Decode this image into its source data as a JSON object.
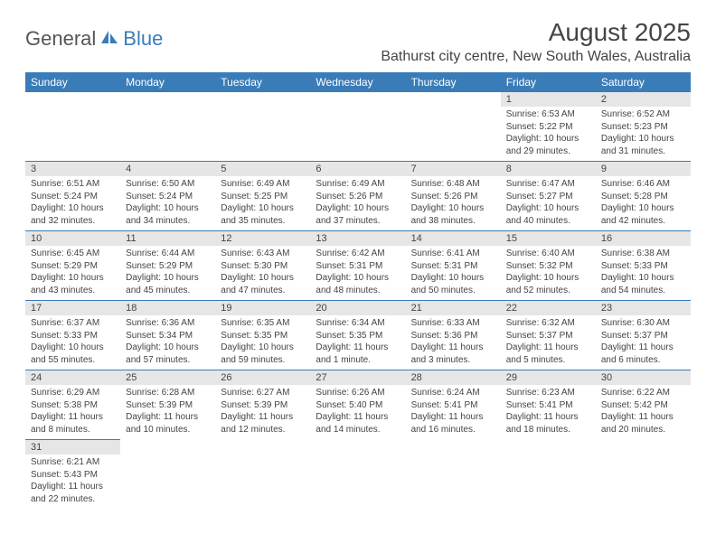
{
  "logo": {
    "text1": "General",
    "text2": "Blue"
  },
  "title": "August 2025",
  "location": "Bathurst city centre, New South Wales, Australia",
  "header_bg": "#3a7cb8",
  "daynum_bg": "#e6e6e6",
  "divider_color": "#3a7cb8",
  "text_color": "#444444",
  "days": [
    "Sunday",
    "Monday",
    "Tuesday",
    "Wednesday",
    "Thursday",
    "Friday",
    "Saturday"
  ],
  "weeks": [
    {
      "nums": [
        "",
        "",
        "",
        "",
        "",
        "1",
        "2"
      ],
      "details": [
        null,
        null,
        null,
        null,
        null,
        {
          "sunrise": "Sunrise: 6:53 AM",
          "sunset": "Sunset: 5:22 PM",
          "day1": "Daylight: 10 hours",
          "day2": "and 29 minutes."
        },
        {
          "sunrise": "Sunrise: 6:52 AM",
          "sunset": "Sunset: 5:23 PM",
          "day1": "Daylight: 10 hours",
          "day2": "and 31 minutes."
        }
      ]
    },
    {
      "nums": [
        "3",
        "4",
        "5",
        "6",
        "7",
        "8",
        "9"
      ],
      "details": [
        {
          "sunrise": "Sunrise: 6:51 AM",
          "sunset": "Sunset: 5:24 PM",
          "day1": "Daylight: 10 hours",
          "day2": "and 32 minutes."
        },
        {
          "sunrise": "Sunrise: 6:50 AM",
          "sunset": "Sunset: 5:24 PM",
          "day1": "Daylight: 10 hours",
          "day2": "and 34 minutes."
        },
        {
          "sunrise": "Sunrise: 6:49 AM",
          "sunset": "Sunset: 5:25 PM",
          "day1": "Daylight: 10 hours",
          "day2": "and 35 minutes."
        },
        {
          "sunrise": "Sunrise: 6:49 AM",
          "sunset": "Sunset: 5:26 PM",
          "day1": "Daylight: 10 hours",
          "day2": "and 37 minutes."
        },
        {
          "sunrise": "Sunrise: 6:48 AM",
          "sunset": "Sunset: 5:26 PM",
          "day1": "Daylight: 10 hours",
          "day2": "and 38 minutes."
        },
        {
          "sunrise": "Sunrise: 6:47 AM",
          "sunset": "Sunset: 5:27 PM",
          "day1": "Daylight: 10 hours",
          "day2": "and 40 minutes."
        },
        {
          "sunrise": "Sunrise: 6:46 AM",
          "sunset": "Sunset: 5:28 PM",
          "day1": "Daylight: 10 hours",
          "day2": "and 42 minutes."
        }
      ]
    },
    {
      "nums": [
        "10",
        "11",
        "12",
        "13",
        "14",
        "15",
        "16"
      ],
      "details": [
        {
          "sunrise": "Sunrise: 6:45 AM",
          "sunset": "Sunset: 5:29 PM",
          "day1": "Daylight: 10 hours",
          "day2": "and 43 minutes."
        },
        {
          "sunrise": "Sunrise: 6:44 AM",
          "sunset": "Sunset: 5:29 PM",
          "day1": "Daylight: 10 hours",
          "day2": "and 45 minutes."
        },
        {
          "sunrise": "Sunrise: 6:43 AM",
          "sunset": "Sunset: 5:30 PM",
          "day1": "Daylight: 10 hours",
          "day2": "and 47 minutes."
        },
        {
          "sunrise": "Sunrise: 6:42 AM",
          "sunset": "Sunset: 5:31 PM",
          "day1": "Daylight: 10 hours",
          "day2": "and 48 minutes."
        },
        {
          "sunrise": "Sunrise: 6:41 AM",
          "sunset": "Sunset: 5:31 PM",
          "day1": "Daylight: 10 hours",
          "day2": "and 50 minutes."
        },
        {
          "sunrise": "Sunrise: 6:40 AM",
          "sunset": "Sunset: 5:32 PM",
          "day1": "Daylight: 10 hours",
          "day2": "and 52 minutes."
        },
        {
          "sunrise": "Sunrise: 6:38 AM",
          "sunset": "Sunset: 5:33 PM",
          "day1": "Daylight: 10 hours",
          "day2": "and 54 minutes."
        }
      ]
    },
    {
      "nums": [
        "17",
        "18",
        "19",
        "20",
        "21",
        "22",
        "23"
      ],
      "details": [
        {
          "sunrise": "Sunrise: 6:37 AM",
          "sunset": "Sunset: 5:33 PM",
          "day1": "Daylight: 10 hours",
          "day2": "and 55 minutes."
        },
        {
          "sunrise": "Sunrise: 6:36 AM",
          "sunset": "Sunset: 5:34 PM",
          "day1": "Daylight: 10 hours",
          "day2": "and 57 minutes."
        },
        {
          "sunrise": "Sunrise: 6:35 AM",
          "sunset": "Sunset: 5:35 PM",
          "day1": "Daylight: 10 hours",
          "day2": "and 59 minutes."
        },
        {
          "sunrise": "Sunrise: 6:34 AM",
          "sunset": "Sunset: 5:35 PM",
          "day1": "Daylight: 11 hours",
          "day2": "and 1 minute."
        },
        {
          "sunrise": "Sunrise: 6:33 AM",
          "sunset": "Sunset: 5:36 PM",
          "day1": "Daylight: 11 hours",
          "day2": "and 3 minutes."
        },
        {
          "sunrise": "Sunrise: 6:32 AM",
          "sunset": "Sunset: 5:37 PM",
          "day1": "Daylight: 11 hours",
          "day2": "and 5 minutes."
        },
        {
          "sunrise": "Sunrise: 6:30 AM",
          "sunset": "Sunset: 5:37 PM",
          "day1": "Daylight: 11 hours",
          "day2": "and 6 minutes."
        }
      ]
    },
    {
      "nums": [
        "24",
        "25",
        "26",
        "27",
        "28",
        "29",
        "30"
      ],
      "details": [
        {
          "sunrise": "Sunrise: 6:29 AM",
          "sunset": "Sunset: 5:38 PM",
          "day1": "Daylight: 11 hours",
          "day2": "and 8 minutes."
        },
        {
          "sunrise": "Sunrise: 6:28 AM",
          "sunset": "Sunset: 5:39 PM",
          "day1": "Daylight: 11 hours",
          "day2": "and 10 minutes."
        },
        {
          "sunrise": "Sunrise: 6:27 AM",
          "sunset": "Sunset: 5:39 PM",
          "day1": "Daylight: 11 hours",
          "day2": "and 12 minutes."
        },
        {
          "sunrise": "Sunrise: 6:26 AM",
          "sunset": "Sunset: 5:40 PM",
          "day1": "Daylight: 11 hours",
          "day2": "and 14 minutes."
        },
        {
          "sunrise": "Sunrise: 6:24 AM",
          "sunset": "Sunset: 5:41 PM",
          "day1": "Daylight: 11 hours",
          "day2": "and 16 minutes."
        },
        {
          "sunrise": "Sunrise: 6:23 AM",
          "sunset": "Sunset: 5:41 PM",
          "day1": "Daylight: 11 hours",
          "day2": "and 18 minutes."
        },
        {
          "sunrise": "Sunrise: 6:22 AM",
          "sunset": "Sunset: 5:42 PM",
          "day1": "Daylight: 11 hours",
          "day2": "and 20 minutes."
        }
      ]
    },
    {
      "nums": [
        "31",
        "",
        "",
        "",
        "",
        "",
        ""
      ],
      "details": [
        {
          "sunrise": "Sunrise: 6:21 AM",
          "sunset": "Sunset: 5:43 PM",
          "day1": "Daylight: 11 hours",
          "day2": "and 22 minutes."
        },
        null,
        null,
        null,
        null,
        null,
        null
      ]
    }
  ]
}
